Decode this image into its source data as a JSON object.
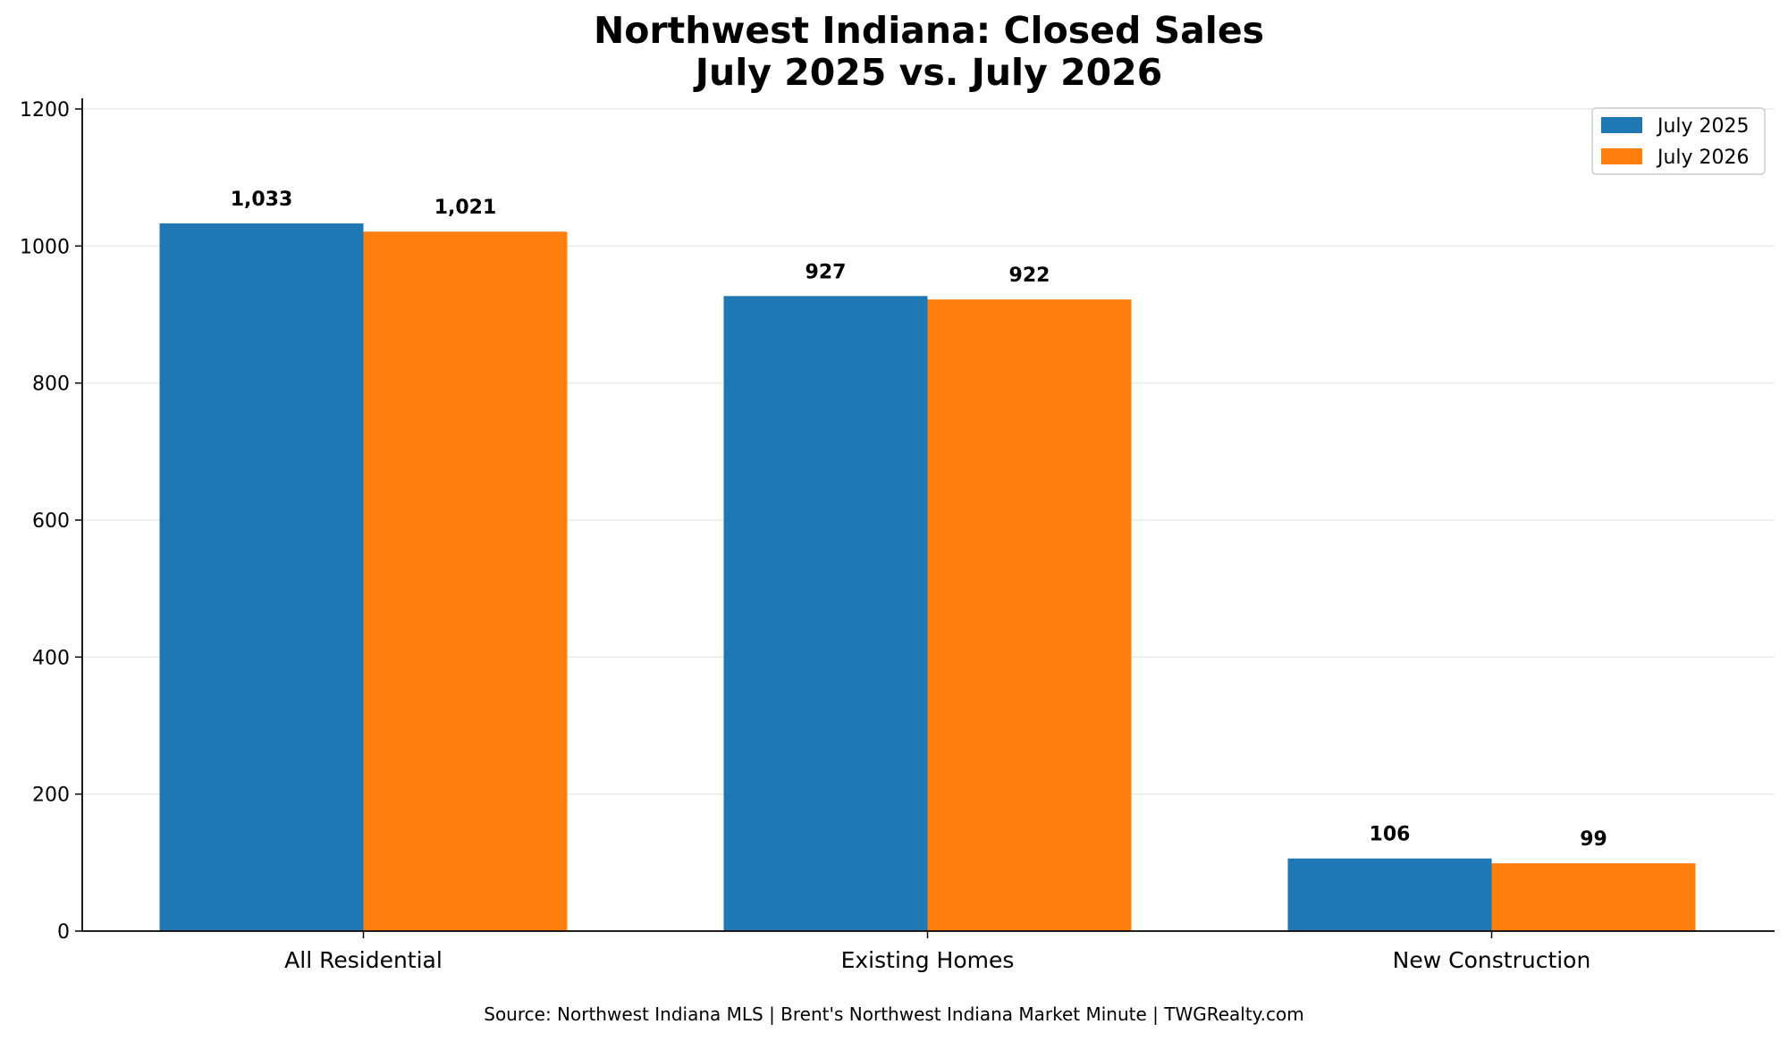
{
  "chart_data": {
    "type": "bar",
    "title_line1": "Northwest Indiana: Closed Sales",
    "title_line2": "July 2025 vs. July 2026",
    "categories": [
      "All Residential",
      "Existing Homes",
      "New Construction"
    ],
    "series": [
      {
        "name": "July 2025",
        "color": "#1f77b4",
        "values": [
          1033,
          927,
          106
        ],
        "labels": [
          "1,033",
          "927",
          "106"
        ]
      },
      {
        "name": "July 2026",
        "color": "#ff7f0e",
        "values": [
          1021,
          922,
          99
        ],
        "labels": [
          "1,021",
          "922",
          "99"
        ]
      }
    ],
    "ylim": [
      0,
      1200
    ],
    "yticks": [
      0,
      200,
      400,
      600,
      800,
      1000,
      1200
    ],
    "grid": true,
    "legend": "top-right",
    "source": "Source: Northwest Indiana MLS | Brent's Northwest Indiana Market Minute | TWGRealty.com"
  }
}
